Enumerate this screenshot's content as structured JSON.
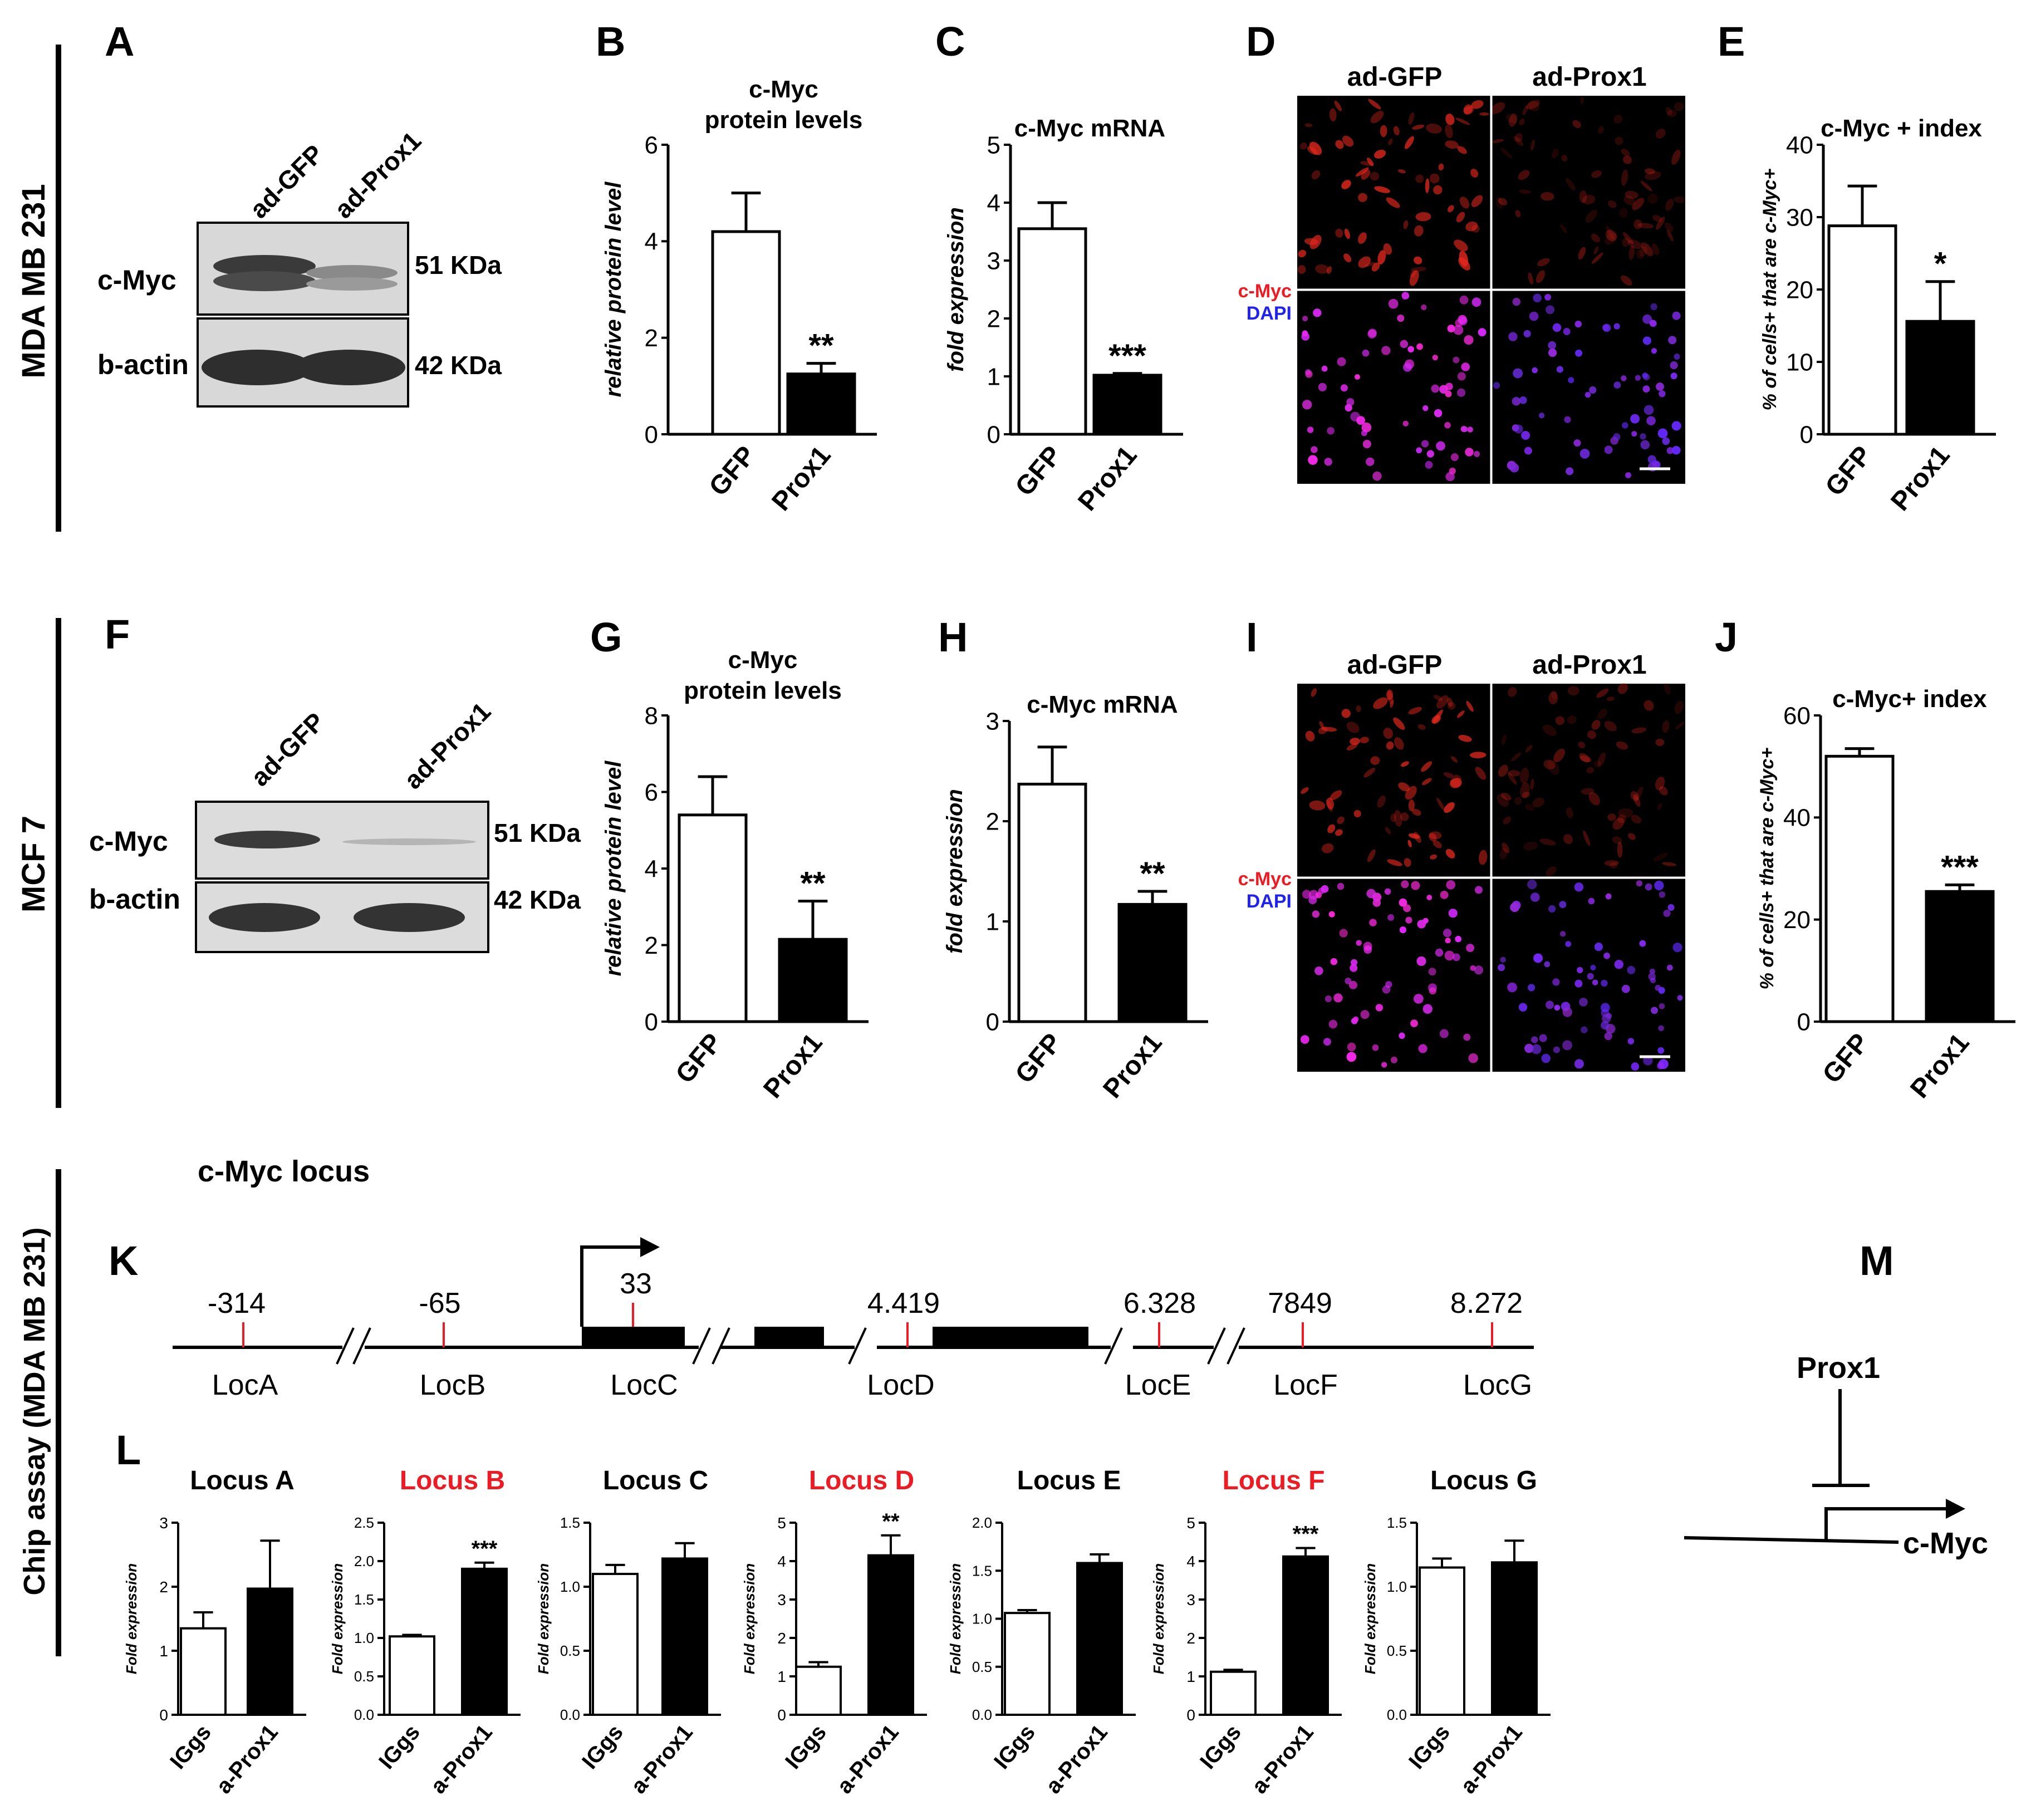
{
  "row_labels": [
    "MDA MB 231",
    "MCF 7",
    "Chip assay (MDA MB 231)"
  ],
  "panels": {
    "A": {
      "letter": "A",
      "lanes": [
        "ad-GFP",
        "ad-Prox1"
      ],
      "bands": [
        {
          "protein": "c-Myc",
          "size": "51 KDa"
        },
        {
          "protein": "b-actin",
          "size": "42 KDa"
        }
      ]
    },
    "D": {
      "letter": "D",
      "columns": [
        "ad-GFP",
        "ad-Prox1"
      ],
      "stain_top": "c-Myc",
      "stain_bottom": "DAPI"
    },
    "F": {
      "letter": "F",
      "lanes": [
        "ad-GFP",
        "ad-Prox1"
      ],
      "bands": [
        {
          "protein": "c-Myc",
          "size": "51 KDa"
        },
        {
          "protein": "b-actin",
          "size": "42 KDa"
        }
      ]
    },
    "I": {
      "letter": "I",
      "columns": [
        "ad-GFP",
        "ad-Prox1"
      ],
      "stain_top": "c-Myc",
      "stain_bottom": "DAPI"
    },
    "K": {
      "letter": "K",
      "title": "c-Myc locus",
      "positions": [
        "-314",
        "-65",
        "33",
        "4.419",
        "6.328",
        "7849",
        "8.272"
      ],
      "loci": [
        "LocA",
        "LocB",
        "LocC",
        "LocD",
        "LocE",
        "LocF",
        "LocG"
      ]
    },
    "L": {
      "letter": "L"
    },
    "M": {
      "letter": "M",
      "regulator": "Prox1",
      "target": "c-Myc"
    }
  },
  "chart_data": [
    {
      "id": "B",
      "letter": "B",
      "type": "bar",
      "title": "c-Myc protein levels",
      "ylabel": "relative protein level",
      "categories": [
        "GFP",
        "Prox1"
      ],
      "values": [
        4.2,
        1.25
      ],
      "errors": [
        0.8,
        0.22
      ],
      "ylim": [
        0,
        6
      ],
      "ticks": [
        "0",
        "2",
        "4",
        "6"
      ],
      "significance": "**"
    },
    {
      "id": "C",
      "letter": "C",
      "type": "bar",
      "title": "c-Myc mRNA",
      "ylabel": "fold expression",
      "categories": [
        "GFP",
        "Prox1"
      ],
      "values": [
        3.55,
        1.02
      ],
      "errors": [
        0.45,
        0.03
      ],
      "ylim": [
        0,
        5
      ],
      "ticks": [
        "0",
        "1",
        "2",
        "3",
        "4",
        "5"
      ],
      "significance": "***"
    },
    {
      "id": "E",
      "letter": "E",
      "type": "bar",
      "title": "c-Myc + index",
      "ylabel": "% of cells+ that are c-Myc+",
      "categories": [
        "GFP",
        "Prox1"
      ],
      "values": [
        28.8,
        15.6
      ],
      "errors": [
        5.5,
        5.5
      ],
      "ylim": [
        0,
        40
      ],
      "ticks": [
        "0",
        "10",
        "20",
        "30",
        "40"
      ],
      "significance": "*"
    },
    {
      "id": "G",
      "letter": "G",
      "type": "bar",
      "title": "c-Myc protein levels",
      "ylabel": "relative protein level",
      "categories": [
        "GFP",
        "Prox1"
      ],
      "values": [
        5.4,
        2.15
      ],
      "errors": [
        1.0,
        1.0
      ],
      "ylim": [
        0,
        8
      ],
      "ticks": [
        "0",
        "2",
        "4",
        "6",
        "8"
      ],
      "significance": "**"
    },
    {
      "id": "H",
      "letter": "H",
      "type": "bar",
      "title": "c-Myc mRNA",
      "ylabel": "fold expression",
      "categories": [
        "GFP",
        "Prox1"
      ],
      "values": [
        2.37,
        1.17
      ],
      "errors": [
        0.37,
        0.13
      ],
      "ylim": [
        0,
        3
      ],
      "ticks": [
        "0",
        "1",
        "2",
        "3"
      ],
      "significance": "**"
    },
    {
      "id": "J",
      "letter": "J",
      "type": "bar",
      "title": "c-Myc+ index",
      "ylabel": "% of cells+ that are c-Myc+",
      "categories": [
        "GFP",
        "Prox1"
      ],
      "values": [
        52.0,
        25.5
      ],
      "errors": [
        1.5,
        1.3
      ],
      "ylim": [
        0,
        60
      ],
      "ticks": [
        "0",
        "20",
        "40",
        "60"
      ],
      "significance": "***"
    },
    {
      "id": "LA",
      "type": "bar",
      "title": "Locus A",
      "title_color": "#000000",
      "ylabel": "Fold expression",
      "categories": [
        "IGgs",
        "a-Prox1"
      ],
      "values": [
        1.35,
        1.97
      ],
      "errors": [
        0.25,
        0.75
      ],
      "ylim": [
        0,
        3
      ],
      "ticks": [
        "0",
        "1",
        "2",
        "3"
      ],
      "significance": ""
    },
    {
      "id": "LB",
      "type": "bar",
      "title": "Locus B",
      "title_color": "#ed1c24",
      "ylabel": "Fold expression",
      "categories": [
        "IGgs",
        "a-Prox1"
      ],
      "values": [
        1.02,
        1.9
      ],
      "errors": [
        0.02,
        0.08
      ],
      "ylim": [
        0,
        2.5
      ],
      "ticks": [
        "0.0",
        "0.5",
        "1.0",
        "1.5",
        "2.0",
        "2.5"
      ],
      "significance": "***"
    },
    {
      "id": "LC",
      "type": "bar",
      "title": "Locus C",
      "title_color": "#000000",
      "ylabel": "Fold expression",
      "categories": [
        "IGgs",
        "a-Prox1"
      ],
      "values": [
        1.1,
        1.22
      ],
      "errors": [
        0.07,
        0.12
      ],
      "ylim": [
        0,
        1.5
      ],
      "ticks": [
        "0.0",
        "0.5",
        "1.0",
        "1.5"
      ],
      "significance": ""
    },
    {
      "id": "LD",
      "type": "bar",
      "title": "Locus D",
      "title_color": "#ed1c24",
      "ylabel": "Fold expression",
      "categories": [
        "IGgs",
        "a-Prox1"
      ],
      "values": [
        1.25,
        4.15
      ],
      "errors": [
        0.12,
        0.52
      ],
      "ylim": [
        0,
        5
      ],
      "ticks": [
        "0",
        "1",
        "2",
        "3",
        "4",
        "5"
      ],
      "significance": "**"
    },
    {
      "id": "LE",
      "type": "bar",
      "title": "Locus E",
      "title_color": "#000000",
      "ylabel": "Fold expression",
      "categories": [
        "IGgs",
        "a-Prox1"
      ],
      "values": [
        1.06,
        1.58
      ],
      "errors": [
        0.03,
        0.09
      ],
      "ylim": [
        0,
        2.0
      ],
      "ticks": [
        "0.0",
        "0.5",
        "1.0",
        "1.5",
        "2.0"
      ],
      "significance": ""
    },
    {
      "id": "LF",
      "type": "bar",
      "title": "Locus F",
      "title_color": "#ed1c24",
      "ylabel": "Fold expression",
      "categories": [
        "IGgs",
        "a-Prox1"
      ],
      "values": [
        1.12,
        4.12
      ],
      "errors": [
        0.05,
        0.22
      ],
      "ylim": [
        0,
        5
      ],
      "ticks": [
        "0",
        "1",
        "2",
        "3",
        "4",
        "5"
      ],
      "significance": "***"
    },
    {
      "id": "LG",
      "type": "bar",
      "title": "Locus G",
      "title_color": "#000000",
      "ylabel": "Fold expression",
      "categories": [
        "IGgs",
        "a-Prox1"
      ],
      "values": [
        1.15,
        1.19
      ],
      "errors": [
        0.07,
        0.17
      ],
      "ylim": [
        0,
        1.5
      ],
      "ticks": [
        "0.0",
        "0.5",
        "1.0",
        "1.5"
      ],
      "significance": ""
    }
  ]
}
